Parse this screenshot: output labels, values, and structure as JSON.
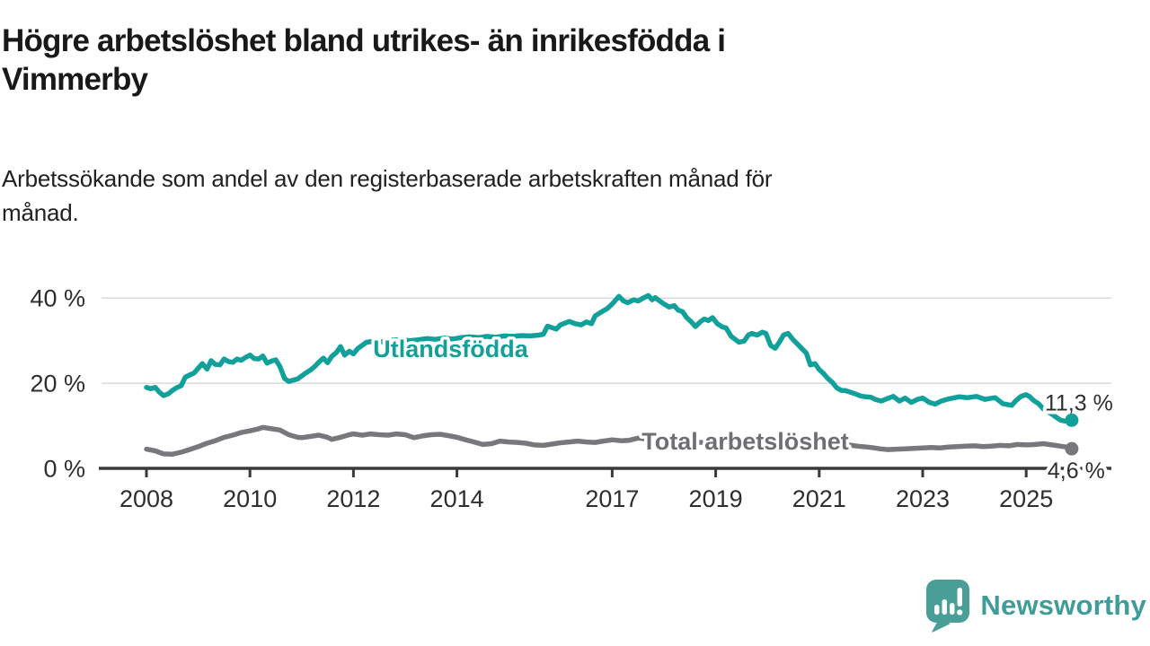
{
  "header": {
    "title_line1": "Högre arbetslöshet bland utrikes- än inrikesfödda i",
    "title_line2": "Vimmerby",
    "subtitle_line1": "Arbetssökande som andel av den registerbaserade arbetskraften månad för",
    "subtitle_line2": "månad."
  },
  "chart_data": {
    "type": "line",
    "unit": "%",
    "grid": "horizontal",
    "xlim": [
      2007.6,
      2026.3
    ],
    "ylim": [
      0,
      44
    ],
    "x_ticks": [
      {
        "v": 2008,
        "label": "2008"
      },
      {
        "v": 2010,
        "label": "2010"
      },
      {
        "v": 2012,
        "label": "2012"
      },
      {
        "v": 2014,
        "label": "2014"
      },
      {
        "v": 2017,
        "label": "2017"
      },
      {
        "v": 2019,
        "label": "2019"
      },
      {
        "v": 2021,
        "label": "2021"
      },
      {
        "v": 2023,
        "label": "2023"
      },
      {
        "v": 2025,
        "label": "2025"
      }
    ],
    "y_ticks": [
      {
        "v": 0,
        "label": "0 %"
      },
      {
        "v": 20,
        "label": "20 %"
      },
      {
        "v": 40,
        "label": "40 %"
      }
    ],
    "series": [
      {
        "name": "Utlandsfödda",
        "slug": "utlandsfodda",
        "color": "#12A19A",
        "label_color": "#12A19A",
        "line_label": {
          "text": "Utlandsfödda",
          "x_year": 2012.38,
          "y_pct": 26.1
        },
        "end_label": {
          "text": "11,3 %",
          "value": 11.3,
          "dx": -30,
          "dy": -11
        },
        "points": [
          [
            2008.0,
            19.0
          ],
          [
            2008.08,
            18.7
          ],
          [
            2008.17,
            19.0
          ],
          [
            2008.25,
            17.9
          ],
          [
            2008.33,
            17.1
          ],
          [
            2008.42,
            17.5
          ],
          [
            2008.5,
            18.3
          ],
          [
            2008.58,
            18.9
          ],
          [
            2008.67,
            19.4
          ],
          [
            2008.75,
            21.4
          ],
          [
            2008.83,
            21.9
          ],
          [
            2008.92,
            22.4
          ],
          [
            2009.0,
            23.5
          ],
          [
            2009.08,
            24.6
          ],
          [
            2009.17,
            23.3
          ],
          [
            2009.25,
            25.3
          ],
          [
            2009.33,
            24.4
          ],
          [
            2009.42,
            24.3
          ],
          [
            2009.5,
            25.7
          ],
          [
            2009.58,
            25.1
          ],
          [
            2009.67,
            24.9
          ],
          [
            2009.75,
            25.7
          ],
          [
            2009.83,
            25.4
          ],
          [
            2009.92,
            26.1
          ],
          [
            2010.0,
            26.6
          ],
          [
            2010.08,
            25.8
          ],
          [
            2010.17,
            25.7
          ],
          [
            2010.25,
            26.4
          ],
          [
            2010.33,
            24.7
          ],
          [
            2010.42,
            25.2
          ],
          [
            2010.5,
            25.5
          ],
          [
            2010.58,
            23.9
          ],
          [
            2010.67,
            21.1
          ],
          [
            2010.75,
            20.4
          ],
          [
            2010.83,
            20.7
          ],
          [
            2010.92,
            21.0
          ],
          [
            2011.0,
            21.7
          ],
          [
            2011.08,
            22.4
          ],
          [
            2011.17,
            23.1
          ],
          [
            2011.25,
            23.9
          ],
          [
            2011.33,
            24.9
          ],
          [
            2011.42,
            25.9
          ],
          [
            2011.5,
            24.8
          ],
          [
            2011.58,
            26.3
          ],
          [
            2011.67,
            27.2
          ],
          [
            2011.75,
            28.6
          ],
          [
            2011.83,
            26.6
          ],
          [
            2011.92,
            27.5
          ],
          [
            2012.0,
            26.9
          ],
          [
            2012.08,
            28.1
          ],
          [
            2012.17,
            28.9
          ],
          [
            2012.25,
            29.6
          ],
          [
            2012.42,
            29.9
          ],
          [
            2012.58,
            29.7
          ],
          [
            2012.75,
            30.1
          ],
          [
            2012.92,
            30.3
          ],
          [
            2013.08,
            30.0
          ],
          [
            2013.25,
            30.2
          ],
          [
            2013.42,
            30.5
          ],
          [
            2013.58,
            30.3
          ],
          [
            2013.75,
            30.6
          ],
          [
            2013.92,
            30.4
          ],
          [
            2014.08,
            30.7
          ],
          [
            2014.25,
            30.9
          ],
          [
            2014.42,
            30.7
          ],
          [
            2014.58,
            31.0
          ],
          [
            2014.75,
            30.8
          ],
          [
            2014.92,
            31.1
          ],
          [
            2015.08,
            31.0
          ],
          [
            2015.25,
            31.2
          ],
          [
            2015.42,
            31.1
          ],
          [
            2015.58,
            31.3
          ],
          [
            2015.67,
            31.5
          ],
          [
            2015.75,
            33.4
          ],
          [
            2015.92,
            32.7
          ],
          [
            2016.0,
            33.7
          ],
          [
            2016.17,
            34.5
          ],
          [
            2016.28,
            34.0
          ],
          [
            2016.4,
            33.7
          ],
          [
            2016.5,
            34.4
          ],
          [
            2016.6,
            34.0
          ],
          [
            2016.67,
            35.8
          ],
          [
            2016.8,
            36.8
          ],
          [
            2016.9,
            37.5
          ],
          [
            2017.0,
            38.6
          ],
          [
            2017.13,
            40.4
          ],
          [
            2017.22,
            39.3
          ],
          [
            2017.3,
            38.9
          ],
          [
            2017.42,
            39.6
          ],
          [
            2017.5,
            39.3
          ],
          [
            2017.6,
            40.0
          ],
          [
            2017.7,
            40.6
          ],
          [
            2017.77,
            39.6
          ],
          [
            2017.83,
            40.1
          ],
          [
            2017.92,
            39.3
          ],
          [
            2018.0,
            38.6
          ],
          [
            2018.1,
            37.9
          ],
          [
            2018.2,
            38.2
          ],
          [
            2018.27,
            37.2
          ],
          [
            2018.36,
            36.8
          ],
          [
            2018.44,
            35.4
          ],
          [
            2018.53,
            34.4
          ],
          [
            2018.61,
            33.3
          ],
          [
            2018.7,
            34.4
          ],
          [
            2018.78,
            35.1
          ],
          [
            2018.86,
            34.7
          ],
          [
            2018.94,
            35.4
          ],
          [
            2019.03,
            34.0
          ],
          [
            2019.13,
            33.2
          ],
          [
            2019.2,
            33.0
          ],
          [
            2019.3,
            31.0
          ],
          [
            2019.45,
            29.6
          ],
          [
            2019.55,
            29.9
          ],
          [
            2019.63,
            31.3
          ],
          [
            2019.7,
            31.7
          ],
          [
            2019.8,
            31.3
          ],
          [
            2019.9,
            32.0
          ],
          [
            2019.97,
            31.7
          ],
          [
            2020.06,
            28.9
          ],
          [
            2020.15,
            28.2
          ],
          [
            2020.23,
            29.6
          ],
          [
            2020.31,
            31.3
          ],
          [
            2020.4,
            31.7
          ],
          [
            2020.49,
            30.3
          ],
          [
            2020.58,
            29.2
          ],
          [
            2020.66,
            28.2
          ],
          [
            2020.75,
            27.1
          ],
          [
            2020.83,
            24.3
          ],
          [
            2020.92,
            24.6
          ],
          [
            2021.0,
            23.2
          ],
          [
            2021.09,
            22.2
          ],
          [
            2021.17,
            21.1
          ],
          [
            2021.26,
            20.1
          ],
          [
            2021.34,
            18.9
          ],
          [
            2021.43,
            18.3
          ],
          [
            2021.5,
            18.3
          ],
          [
            2021.6,
            17.9
          ],
          [
            2021.7,
            17.5
          ],
          [
            2021.8,
            17.0
          ],
          [
            2021.9,
            16.8
          ],
          [
            2022.0,
            16.7
          ],
          [
            2022.08,
            16.2
          ],
          [
            2022.2,
            15.8
          ],
          [
            2022.32,
            16.4
          ],
          [
            2022.43,
            16.9
          ],
          [
            2022.55,
            15.8
          ],
          [
            2022.66,
            16.5
          ],
          [
            2022.78,
            15.5
          ],
          [
            2022.9,
            16.2
          ],
          [
            2023.0,
            16.5
          ],
          [
            2023.13,
            15.5
          ],
          [
            2023.24,
            15.1
          ],
          [
            2023.36,
            15.8
          ],
          [
            2023.47,
            16.2
          ],
          [
            2023.58,
            16.5
          ],
          [
            2023.7,
            16.8
          ],
          [
            2023.87,
            16.6
          ],
          [
            2024.04,
            16.9
          ],
          [
            2024.2,
            16.2
          ],
          [
            2024.4,
            16.6
          ],
          [
            2024.55,
            15.2
          ],
          [
            2024.72,
            14.8
          ],
          [
            2024.8,
            15.9
          ],
          [
            2024.9,
            16.9
          ],
          [
            2025.0,
            17.3
          ],
          [
            2025.06,
            16.9
          ],
          [
            2025.15,
            15.9
          ],
          [
            2025.24,
            15.2
          ],
          [
            2025.32,
            14.1
          ],
          [
            2025.4,
            13.4
          ],
          [
            2025.5,
            12.7
          ],
          [
            2025.58,
            12.0
          ],
          [
            2025.67,
            11.3
          ],
          [
            2025.75,
            11.1
          ],
          [
            2025.88,
            11.3
          ]
        ]
      },
      {
        "name": "Total arbetslöshet",
        "slug": "total-arbetsloshet",
        "color": "#78787C",
        "label_color": "#6F6F73",
        "line_label": {
          "text": "Total arbetslöshet",
          "x_year": 2017.57,
          "y_pct": 4.4
        },
        "end_label": {
          "text": "4,6 %",
          "value": 4.6,
          "dx": -27,
          "dy": 33
        },
        "points": [
          [
            2008.0,
            4.5
          ],
          [
            2008.17,
            4.1
          ],
          [
            2008.33,
            3.4
          ],
          [
            2008.5,
            3.3
          ],
          [
            2008.67,
            3.8
          ],
          [
            2008.83,
            4.4
          ],
          [
            2009.0,
            5.1
          ],
          [
            2009.17,
            5.9
          ],
          [
            2009.33,
            6.5
          ],
          [
            2009.5,
            7.3
          ],
          [
            2009.67,
            7.8
          ],
          [
            2009.83,
            8.4
          ],
          [
            2010.0,
            8.8
          ],
          [
            2010.17,
            9.3
          ],
          [
            2010.25,
            9.6
          ],
          [
            2010.42,
            9.3
          ],
          [
            2010.58,
            9.0
          ],
          [
            2010.75,
            7.9
          ],
          [
            2010.92,
            7.3
          ],
          [
            2011.0,
            7.2
          ],
          [
            2011.17,
            7.5
          ],
          [
            2011.33,
            7.8
          ],
          [
            2011.5,
            7.3
          ],
          [
            2011.58,
            6.8
          ],
          [
            2011.75,
            7.3
          ],
          [
            2011.92,
            7.9
          ],
          [
            2012.0,
            8.1
          ],
          [
            2012.17,
            7.8
          ],
          [
            2012.33,
            8.1
          ],
          [
            2012.5,
            7.9
          ],
          [
            2012.67,
            7.8
          ],
          [
            2012.83,
            8.1
          ],
          [
            2013.0,
            7.9
          ],
          [
            2013.17,
            7.2
          ],
          [
            2013.33,
            7.6
          ],
          [
            2013.5,
            7.9
          ],
          [
            2013.67,
            8.0
          ],
          [
            2013.83,
            7.7
          ],
          [
            2014.0,
            7.3
          ],
          [
            2014.17,
            6.7
          ],
          [
            2014.33,
            6.2
          ],
          [
            2014.5,
            5.6
          ],
          [
            2014.67,
            5.8
          ],
          [
            2014.83,
            6.4
          ],
          [
            2015.0,
            6.2
          ],
          [
            2015.17,
            6.1
          ],
          [
            2015.33,
            5.9
          ],
          [
            2015.5,
            5.5
          ],
          [
            2015.67,
            5.4
          ],
          [
            2015.83,
            5.7
          ],
          [
            2016.0,
            6.0
          ],
          [
            2016.17,
            6.2
          ],
          [
            2016.33,
            6.4
          ],
          [
            2016.5,
            6.2
          ],
          [
            2016.67,
            6.1
          ],
          [
            2016.83,
            6.4
          ],
          [
            2017.0,
            6.7
          ],
          [
            2017.17,
            6.5
          ],
          [
            2017.33,
            6.6
          ],
          [
            2017.5,
            7.1
          ],
          [
            2017.67,
            6.9
          ],
          [
            2017.83,
            6.7
          ],
          [
            2018.0,
            6.6
          ],
          [
            2018.25,
            6.4
          ],
          [
            2018.5,
            6.2
          ],
          [
            2018.75,
            6.1
          ],
          [
            2019.0,
            5.9
          ],
          [
            2019.25,
            5.8
          ],
          [
            2019.5,
            5.7
          ],
          [
            2019.75,
            5.9
          ],
          [
            2020.0,
            6.1
          ],
          [
            2020.25,
            6.8
          ],
          [
            2020.5,
            7.0
          ],
          [
            2020.75,
            6.7
          ],
          [
            2021.0,
            6.3
          ],
          [
            2021.25,
            6.0
          ],
          [
            2021.5,
            5.6
          ],
          [
            2021.75,
            5.2
          ],
          [
            2022.0,
            4.9
          ],
          [
            2022.17,
            4.6
          ],
          [
            2022.33,
            4.4
          ],
          [
            2022.5,
            4.5
          ],
          [
            2022.67,
            4.6
          ],
          [
            2022.83,
            4.7
          ],
          [
            2023.0,
            4.8
          ],
          [
            2023.17,
            4.9
          ],
          [
            2023.33,
            4.8
          ],
          [
            2023.5,
            5.0
          ],
          [
            2023.67,
            5.1
          ],
          [
            2023.83,
            5.2
          ],
          [
            2024.0,
            5.3
          ],
          [
            2024.17,
            5.1
          ],
          [
            2024.33,
            5.2
          ],
          [
            2024.5,
            5.4
          ],
          [
            2024.67,
            5.3
          ],
          [
            2024.83,
            5.6
          ],
          [
            2025.0,
            5.5
          ],
          [
            2025.17,
            5.6
          ],
          [
            2025.33,
            5.8
          ],
          [
            2025.5,
            5.5
          ],
          [
            2025.67,
            5.2
          ],
          [
            2025.83,
            4.9
          ],
          [
            2025.88,
            4.6
          ]
        ]
      }
    ]
  },
  "footer": {
    "brand": "Newsworthy",
    "brand_color": "#3E9D98",
    "logo_color": "#4A9E98"
  }
}
